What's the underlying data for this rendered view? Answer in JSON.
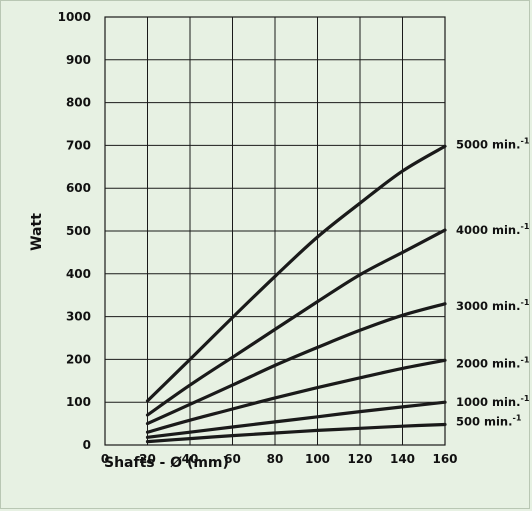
{
  "chart_data": {
    "type": "line",
    "title": "",
    "xlabel": "Shafts - Ø (mm)",
    "ylabel": "Watt",
    "xlim": [
      0,
      160
    ],
    "ylim": [
      0,
      1000
    ],
    "x_ticks": [
      "0",
      "20",
      "40",
      "60",
      "80",
      "100",
      "120",
      "140",
      "160"
    ],
    "y_ticks": [
      "0",
      "100",
      "200",
      "300",
      "400",
      "500",
      "600",
      "700",
      "800",
      "900",
      "1000"
    ],
    "grid": true,
    "x": [
      20,
      40,
      60,
      80,
      100,
      120,
      140,
      160
    ],
    "series": [
      {
        "name": "500 min.",
        "superscript": "-1",
        "values": [
          8,
          15,
          22,
          28,
          34,
          39,
          44,
          48
        ]
      },
      {
        "name": "1000 min.",
        "superscript": "-1",
        "values": [
          18,
          30,
          42,
          54,
          66,
          78,
          89,
          100
        ]
      },
      {
        "name": "2000 min.",
        "superscript": "-1",
        "values": [
          30,
          58,
          84,
          110,
          134,
          157,
          179,
          198
        ]
      },
      {
        "name": "3000 min.",
        "superscript": "-1",
        "values": [
          50,
          95,
          140,
          186,
          228,
          268,
          303,
          330
        ]
      },
      {
        "name": "4000 min.",
        "superscript": "-1",
        "values": [
          70,
          140,
          205,
          270,
          335,
          398,
          450,
          502
        ]
      },
      {
        "name": "5000 min.",
        "superscript": "-1",
        "values": [
          103,
          200,
          298,
          394,
          486,
          565,
          640,
          698
        ]
      }
    ],
    "colors": {
      "line": "#1a1a1a",
      "grid": "#1a1a1a",
      "background": "#e7f1e3"
    }
  }
}
